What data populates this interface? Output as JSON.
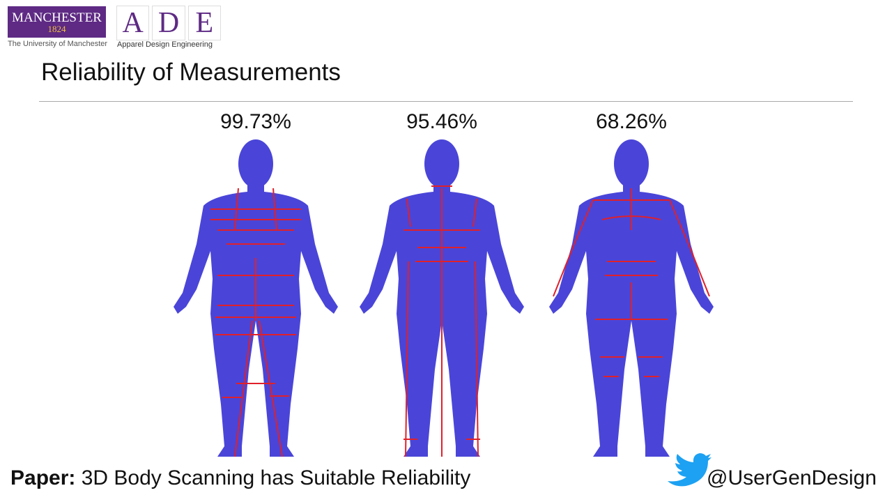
{
  "header": {
    "manchester": {
      "name": "MANCHESTER",
      "year": "1824",
      "caption": "The University of Manchester"
    },
    "ade": {
      "letters": [
        "A",
        "D",
        "E"
      ],
      "caption": "Apparel Design Engineering"
    }
  },
  "title": "Reliability of Measurements",
  "figures": [
    {
      "label": "99.73%"
    },
    {
      "label": "95.46%"
    },
    {
      "label": "68.26%"
    }
  ],
  "footer": {
    "paper_label": "Paper:",
    "paper_title": "3D Body Scanning has Suitable Reliability",
    "handle": "@UserGenDesign"
  }
}
